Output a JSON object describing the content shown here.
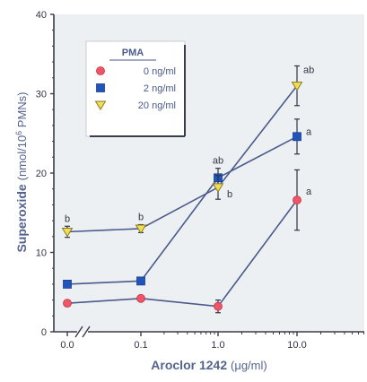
{
  "chart_data": {
    "type": "line",
    "xlabel": "Aroclor 1242",
    "xunit": "(μg/ml)",
    "ylabel": "Superoxide",
    "yunit_pre": "(nmol/10",
    "yunit_exp": "6",
    "yunit_post": " PMNs)",
    "x_tick_labels": [
      "0.0",
      "0.1",
      "1.0",
      "10.0"
    ],
    "x_scale": "log10 with axis break between 0.0 and 0.1",
    "ylim": [
      0,
      40
    ],
    "y_ticks": [
      0,
      10,
      20,
      30,
      40
    ],
    "legend": {
      "title": "PMA",
      "placement": "top-left"
    },
    "grid": false,
    "series": [
      {
        "name": "0 ng/ml",
        "color": "#ee5566",
        "marker": "circle",
        "points": [
          {
            "x": "0.0",
            "y": 3.6,
            "err": 0.3,
            "label": ""
          },
          {
            "x": "0.1",
            "y": 4.2,
            "err": 0.3,
            "label": ""
          },
          {
            "x": "1.0",
            "y": 3.2,
            "err": 0.8,
            "label": ""
          },
          {
            "x": "10.0",
            "y": 16.6,
            "err": 3.8,
            "label": "a"
          }
        ]
      },
      {
        "name": "2 ng/ml",
        "color": "#2255bb",
        "marker": "square",
        "points": [
          {
            "x": "0.0",
            "y": 6.0,
            "err": 0.3,
            "label": ""
          },
          {
            "x": "0.1",
            "y": 6.4,
            "err": 0.3,
            "label": ""
          },
          {
            "x": "1.0",
            "y": 19.4,
            "err": 1.2,
            "label": "ab"
          },
          {
            "x": "10.0",
            "y": 24.6,
            "err": 2.2,
            "label": "a"
          }
        ]
      },
      {
        "name": "20 ng/ml",
        "color": "#f2dd55",
        "marker": "triangle-down",
        "points": [
          {
            "x": "0.0",
            "y": 12.6,
            "err": 0.7,
            "label": "b"
          },
          {
            "x": "0.1",
            "y": 13.0,
            "err": 0.5,
            "label": "b"
          },
          {
            "x": "1.0",
            "y": 18.2,
            "err": 1.5,
            "label": "b"
          },
          {
            "x": "10.0",
            "y": 31.0,
            "err": 2.5,
            "label": "ab"
          }
        ]
      }
    ]
  }
}
